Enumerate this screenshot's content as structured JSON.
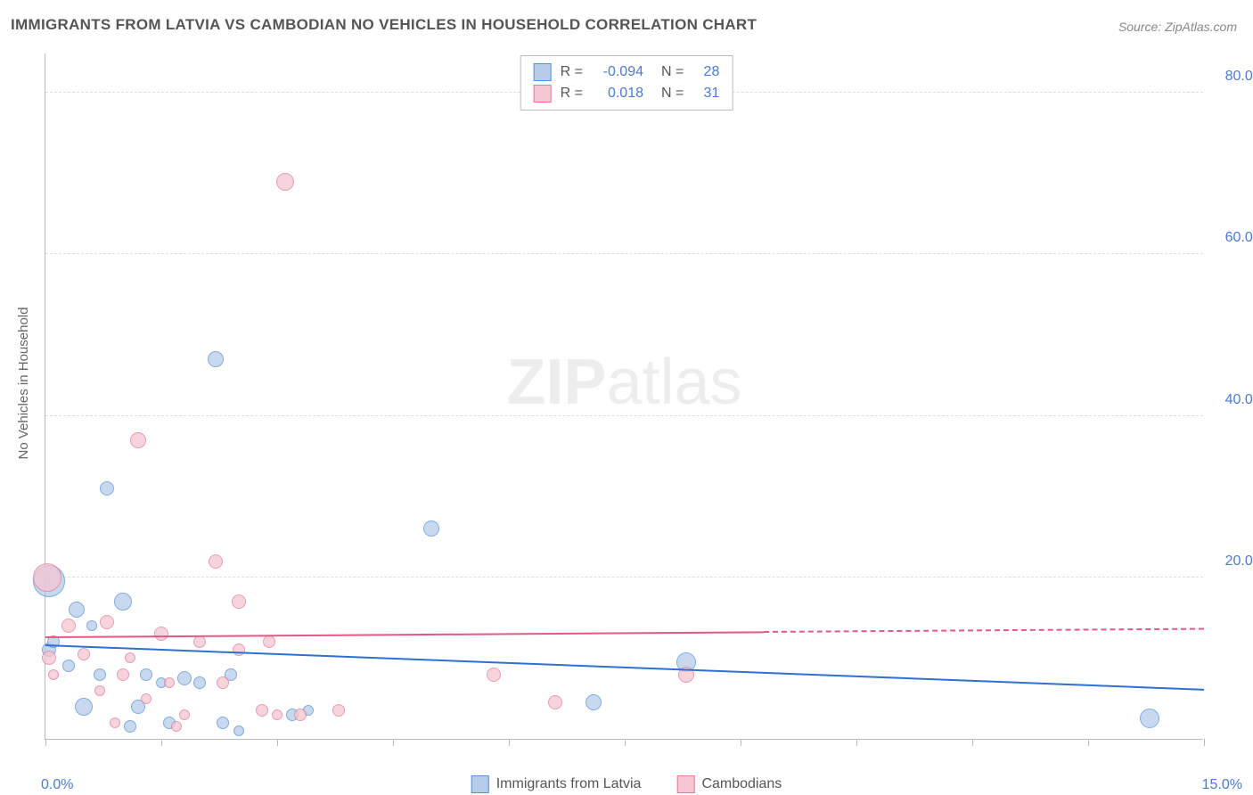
{
  "title": "IMMIGRANTS FROM LATVIA VS CAMBODIAN NO VEHICLES IN HOUSEHOLD CORRELATION CHART",
  "source": "Source: ZipAtlas.com",
  "watermark_bold": "ZIP",
  "watermark_rest": "atlas",
  "y_axis_title": "No Vehicles in Household",
  "x_min_label": "0.0%",
  "x_max_label": "15.0%",
  "x_range": [
    0,
    15
  ],
  "y_range": [
    0,
    85
  ],
  "y_ticks": [
    {
      "value": 20,
      "label": "20.0%"
    },
    {
      "value": 40,
      "label": "40.0%"
    },
    {
      "value": 60,
      "label": "60.0%"
    },
    {
      "value": 80,
      "label": "80.0%"
    }
  ],
  "x_tick_positions": [
    0,
    1.5,
    3,
    4.5,
    6,
    7.5,
    9,
    10.5,
    12,
    13.5,
    15
  ],
  "series": [
    {
      "id": "latvia",
      "legend_label": "Immigrants from Latvia",
      "fill": "#b6cdea",
      "stroke": "#5a8fd6",
      "line_color": "#2f6fd0",
      "r_label": "R =",
      "r_value": "-0.094",
      "n_label": "N =",
      "n_value": "28",
      "trend_start": {
        "x": 0,
        "y": 11.5
      },
      "trend_end": {
        "x": 15,
        "y": 6.0
      },
      "trend_solid_to_x": 15,
      "points": [
        {
          "x": 0.05,
          "y": 19.5,
          "r": 18
        },
        {
          "x": 0.05,
          "y": 11,
          "r": 8
        },
        {
          "x": 0.1,
          "y": 12,
          "r": 7
        },
        {
          "x": 0.4,
          "y": 16,
          "r": 9
        },
        {
          "x": 0.6,
          "y": 14,
          "r": 6
        },
        {
          "x": 0.5,
          "y": 4,
          "r": 10
        },
        {
          "x": 0.8,
          "y": 31,
          "r": 8
        },
        {
          "x": 0.7,
          "y": 8,
          "r": 7
        },
        {
          "x": 0.3,
          "y": 9,
          "r": 7
        },
        {
          "x": 1.0,
          "y": 17,
          "r": 10
        },
        {
          "x": 1.2,
          "y": 4,
          "r": 8
        },
        {
          "x": 1.3,
          "y": 8,
          "r": 7
        },
        {
          "x": 1.1,
          "y": 1.5,
          "r": 7
        },
        {
          "x": 1.5,
          "y": 7,
          "r": 6
        },
        {
          "x": 1.6,
          "y": 2,
          "r": 7
        },
        {
          "x": 1.8,
          "y": 7.5,
          "r": 8
        },
        {
          "x": 2.0,
          "y": 7,
          "r": 7
        },
        {
          "x": 2.2,
          "y": 47,
          "r": 9
        },
        {
          "x": 2.3,
          "y": 2,
          "r": 7
        },
        {
          "x": 2.4,
          "y": 8,
          "r": 7
        },
        {
          "x": 2.5,
          "y": 1,
          "r": 6
        },
        {
          "x": 3.2,
          "y": 3,
          "r": 7
        },
        {
          "x": 3.4,
          "y": 3.5,
          "r": 6
        },
        {
          "x": 5.0,
          "y": 26,
          "r": 9
        },
        {
          "x": 7.1,
          "y": 4.5,
          "r": 9
        },
        {
          "x": 8.3,
          "y": 9.5,
          "r": 11
        },
        {
          "x": 14.3,
          "y": 2.5,
          "r": 11
        }
      ]
    },
    {
      "id": "cambodian",
      "legend_label": "Cambodians",
      "fill": "#f3c6d1",
      "stroke": "#e47a9a",
      "line_color": "#e05a85",
      "r_label": "R =",
      "r_value": "0.018",
      "n_label": "N =",
      "n_value": "31",
      "trend_start": {
        "x": 0,
        "y": 12.5
      },
      "trend_end": {
        "x": 15,
        "y": 13.5
      },
      "trend_solid_to_x": 9.3,
      "points": [
        {
          "x": 0.02,
          "y": 20,
          "r": 16
        },
        {
          "x": 0.05,
          "y": 10,
          "r": 8
        },
        {
          "x": 0.1,
          "y": 8,
          "r": 6
        },
        {
          "x": 0.3,
          "y": 14,
          "r": 8
        },
        {
          "x": 0.5,
          "y": 10.5,
          "r": 7
        },
        {
          "x": 0.7,
          "y": 6,
          "r": 6
        },
        {
          "x": 0.8,
          "y": 14.5,
          "r": 8
        },
        {
          "x": 0.9,
          "y": 2,
          "r": 6
        },
        {
          "x": 1.0,
          "y": 8,
          "r": 7
        },
        {
          "x": 1.1,
          "y": 10,
          "r": 6
        },
        {
          "x": 1.2,
          "y": 37,
          "r": 9
        },
        {
          "x": 1.3,
          "y": 5,
          "r": 6
        },
        {
          "x": 1.5,
          "y": 13,
          "r": 8
        },
        {
          "x": 1.6,
          "y": 7,
          "r": 6
        },
        {
          "x": 1.7,
          "y": 1.5,
          "r": 6
        },
        {
          "x": 1.8,
          "y": 3,
          "r": 6
        },
        {
          "x": 2.0,
          "y": 12,
          "r": 7
        },
        {
          "x": 2.2,
          "y": 22,
          "r": 8
        },
        {
          "x": 2.3,
          "y": 7,
          "r": 7
        },
        {
          "x": 2.5,
          "y": 17,
          "r": 8
        },
        {
          "x": 2.5,
          "y": 11,
          "r": 7
        },
        {
          "x": 2.8,
          "y": 3.5,
          "r": 7
        },
        {
          "x": 2.9,
          "y": 12,
          "r": 7
        },
        {
          "x": 3.0,
          "y": 3,
          "r": 6
        },
        {
          "x": 3.1,
          "y": 69,
          "r": 10
        },
        {
          "x": 3.3,
          "y": 3,
          "r": 7
        },
        {
          "x": 3.8,
          "y": 3.5,
          "r": 7
        },
        {
          "x": 5.8,
          "y": 8,
          "r": 8
        },
        {
          "x": 6.6,
          "y": 4.5,
          "r": 8
        },
        {
          "x": 8.3,
          "y": 8,
          "r": 9
        }
      ]
    }
  ]
}
